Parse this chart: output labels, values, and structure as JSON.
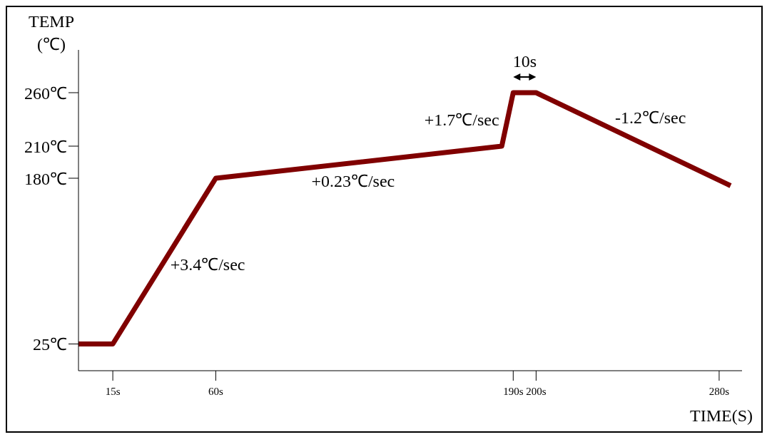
{
  "chart_data": {
    "type": "line",
    "xlabel": "TIME(S)",
    "ylabel": "TEMP (℃)",
    "x": [
      0,
      15,
      60,
      185,
      190,
      200,
      285
    ],
    "series": [
      {
        "color": "#800000",
        "values": [
          25,
          25,
          180,
          210,
          260,
          260,
          173
        ]
      }
    ],
    "xlim": [
      0,
      290
    ],
    "ylim": [
      0,
      300
    ],
    "xticks": [
      {
        "value": 15,
        "label": "15s"
      },
      {
        "value": 60,
        "label": "60s"
      },
      {
        "value": 190,
        "label": "190s"
      },
      {
        "value": 200,
        "label": "200s"
      },
      {
        "value": 280,
        "label": "280s"
      }
    ],
    "yticks": [
      {
        "value": 25,
        "label": "25℃"
      },
      {
        "value": 180,
        "label": "180℃"
      },
      {
        "value": 210,
        "label": "210℃"
      },
      {
        "value": 260,
        "label": "260℃"
      }
    ],
    "annotations": [
      {
        "text": "+3.4℃/sec",
        "x": 37,
        "y": 100
      },
      {
        "text": "+0.23℃/sec",
        "x": 120,
        "y": 190
      },
      {
        "text": "+1.7℃/sec",
        "x": 187,
        "y": 235
      },
      {
        "text": "-1.2℃/sec",
        "x": 250,
        "y": 209
      },
      "10s"
    ],
    "grid": false,
    "legend": false,
    "marker": "none",
    "line_style": "solid"
  }
}
